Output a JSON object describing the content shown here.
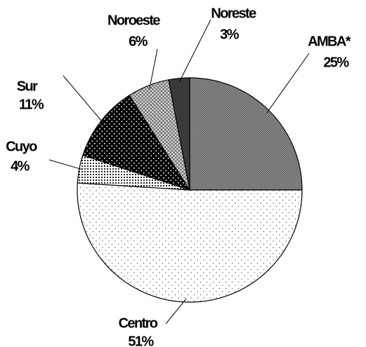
{
  "chart_data": {
    "type": "pie",
    "categories": [
      "AMBA*",
      "Centro",
      "Cuyo",
      "Sur",
      "Noroeste",
      "Noreste"
    ],
    "values": [
      25,
      51,
      4,
      11,
      6,
      3
    ],
    "value_labels": [
      "25%",
      "51%",
      "4%",
      "11%",
      "6%",
      "3%"
    ],
    "colors": [
      "#9a9a9a",
      "#ffffff",
      "#ffffff",
      "#000000",
      "#d8d8d8",
      "#3a3a3a"
    ]
  }
}
